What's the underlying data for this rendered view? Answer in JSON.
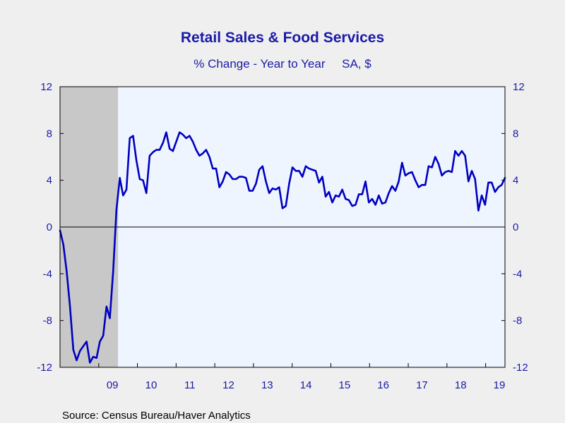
{
  "colors": {
    "background": "#efefef",
    "plot_background": "#eef5ff",
    "recession_shade": "#c8c8c8",
    "series_line": "#0000c0",
    "zero_line": "#000000",
    "text": "#1a1aa8"
  },
  "source": "Source:  Census Bureau/Haver Analytics",
  "chart_data": {
    "type": "line",
    "title": "Retail Sales & Food Services",
    "subtitle": "% Change - Year to Year     SA, $",
    "ylim": [
      -12,
      12
    ],
    "y_ticks": [
      "12",
      "8",
      "4",
      "0",
      "-4",
      "-8",
      "-12"
    ],
    "x_range": [
      2008.0,
      2019.5
    ],
    "x_labels": [
      {
        "text": "09",
        "year": 2009.5
      },
      {
        "text": "10",
        "year": 2010.5
      },
      {
        "text": "11",
        "year": 2011.5
      },
      {
        "text": "12",
        "year": 2012.5
      },
      {
        "text": "13",
        "year": 2013.5
      },
      {
        "text": "14",
        "year": 2014.5
      },
      {
        "text": "15",
        "year": 2015.5
      },
      {
        "text": "16",
        "year": 2016.5
      },
      {
        "text": "17",
        "year": 2017.5
      },
      {
        "text": "18",
        "year": 2018.5
      },
      {
        "text": "19",
        "year": 2019.5
      }
    ],
    "recession": {
      "start": 2008.0,
      "end": 2009.5
    },
    "zero_line": true,
    "grid": false,
    "series": [
      {
        "values": [
          -0.3,
          -1.5,
          -3.8,
          -6.8,
          -10.5,
          -11.4,
          -10.6,
          -10.2,
          -9.8,
          -11.6,
          -11.1,
          -11.2,
          -9.8,
          -9.3,
          -6.8,
          -7.8,
          -3.8,
          1.5,
          4.2,
          2.7,
          3.2,
          7.6,
          7.8,
          5.7,
          4.1,
          4.0,
          2.9,
          6.1,
          6.4,
          6.6,
          6.6,
          7.2,
          8.1,
          6.7,
          6.5,
          7.3,
          8.1,
          7.9,
          7.6,
          7.8,
          7.3,
          6.6,
          6.1,
          6.3,
          6.6,
          6.0,
          5.0,
          5.0,
          3.4,
          3.9,
          4.7,
          4.5,
          4.1,
          4.1,
          4.3,
          4.3,
          4.2,
          3.1,
          3.1,
          3.7,
          4.9,
          5.2,
          3.9,
          2.9,
          3.3,
          3.2,
          3.4,
          1.6,
          1.8,
          3.7,
          5.1,
          4.8,
          4.8,
          4.3,
          5.2,
          5.0,
          4.9,
          4.8,
          3.8,
          4.3,
          2.6,
          3.0,
          2.1,
          2.7,
          2.6,
          3.2,
          2.4,
          2.3,
          1.8,
          1.9,
          2.8,
          2.8,
          3.9,
          2.1,
          2.4,
          1.9,
          2.7,
          2.0,
          2.1,
          2.9,
          3.5,
          3.1,
          3.9,
          5.5,
          4.4,
          4.6,
          4.7,
          4.0,
          3.4,
          3.6,
          3.6,
          5.2,
          5.1,
          6.0,
          5.4,
          4.4,
          4.7,
          4.8,
          4.7,
          6.5,
          6.1,
          6.5,
          6.1,
          3.9,
          4.8,
          4.1,
          1.4,
          2.7,
          1.9,
          3.8,
          3.8,
          3.0,
          3.4,
          3.6,
          4.2
        ]
      }
    ]
  }
}
